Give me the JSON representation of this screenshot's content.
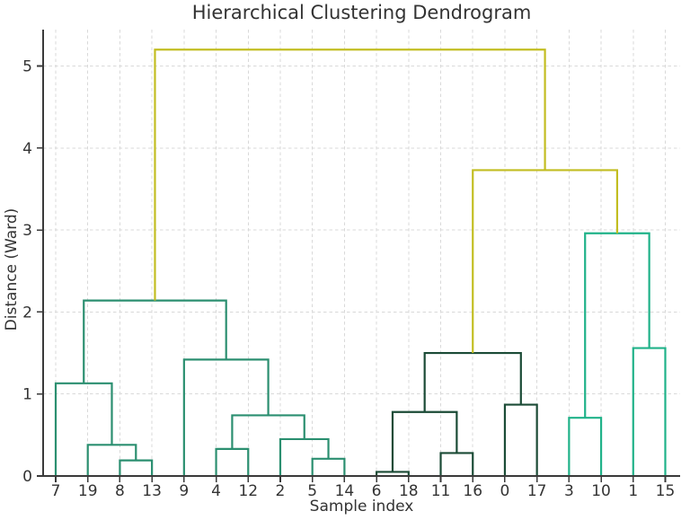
{
  "chart_data": {
    "type": "dendrogram",
    "title": "Hierarchical Clustering Dendrogram",
    "xlabel": "Sample index",
    "ylabel": "Distance (Ward)",
    "grid": "dashed",
    "legend": "none",
    "ylim": [
      0,
      5.44
    ],
    "yticks": [
      0,
      1,
      2,
      3,
      4,
      5
    ],
    "leaves": [
      "7",
      "19",
      "8",
      "13",
      "9",
      "4",
      "12",
      "2",
      "5",
      "14",
      "6",
      "18",
      "11",
      "16",
      "0",
      "17",
      "3",
      "10",
      "1",
      "15"
    ],
    "palette": {
      "cluster_left": "#2b8f70",
      "cluster_dark": "#1b4b36",
      "cluster_teal": "#20b289",
      "above_threshold": "#c2bd21"
    },
    "merges": [
      {
        "a": "6",
        "b": "18",
        "height": 0.05,
        "color": "cluster_dark"
      },
      {
        "a": "8",
        "b": "13",
        "height": 0.19,
        "color": "cluster_left"
      },
      {
        "a": "5",
        "b": "14",
        "height": 0.21,
        "color": "cluster_left"
      },
      {
        "a": "11",
        "b": "16",
        "height": 0.28,
        "color": "cluster_dark"
      },
      {
        "a": "4",
        "b": "12",
        "height": 0.33,
        "color": "cluster_left"
      },
      {
        "a": "19",
        "b": 1,
        "height": 0.38,
        "color": "cluster_left"
      },
      {
        "a": "2",
        "b": 2,
        "height": 0.45,
        "color": "cluster_left"
      },
      {
        "a": "3",
        "b": "10",
        "height": 0.71,
        "color": "cluster_teal"
      },
      {
        "a": 4,
        "b": 6,
        "height": 0.74,
        "color": "cluster_left"
      },
      {
        "a": 0,
        "b": 3,
        "height": 0.78,
        "color": "cluster_dark"
      },
      {
        "a": "0",
        "b": "17",
        "height": 0.87,
        "color": "cluster_dark"
      },
      {
        "a": "7",
        "b": 5,
        "height": 1.13,
        "color": "cluster_left"
      },
      {
        "a": "9",
        "b": 8,
        "height": 1.42,
        "color": "cluster_left"
      },
      {
        "a": 9,
        "b": 10,
        "height": 1.5,
        "color": "cluster_dark"
      },
      {
        "a": "1",
        "b": "15",
        "height": 1.56,
        "color": "cluster_teal"
      },
      {
        "a": 11,
        "b": 12,
        "height": 2.14,
        "color": "cluster_left"
      },
      {
        "a": 7,
        "b": 14,
        "height": 2.96,
        "color": "cluster_teal"
      },
      {
        "a": 13,
        "b": 16,
        "height": 3.73,
        "color": "above_threshold"
      },
      {
        "a": 15,
        "b": 17,
        "height": 5.2,
        "color": "above_threshold"
      }
    ]
  }
}
